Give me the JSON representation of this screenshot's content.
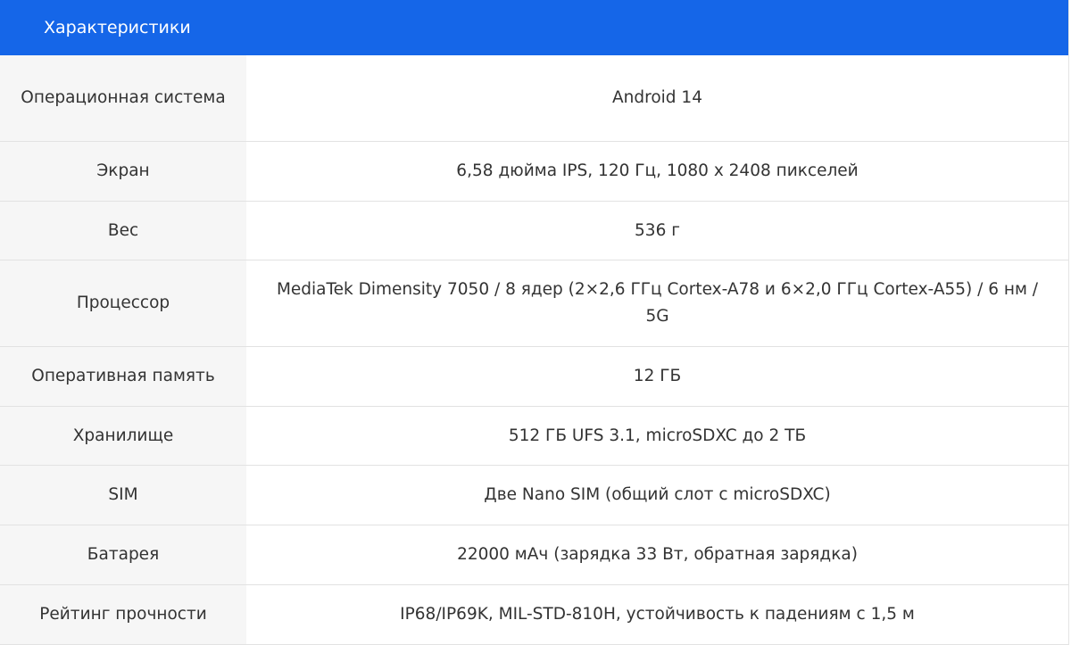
{
  "header": {
    "title": "Характеристики"
  },
  "rows": [
    {
      "label": "Операционная система",
      "value": "Android 14"
    },
    {
      "label": "Экран",
      "value": "6,58 дюйма IPS, 120 Гц, 1080 x 2408 пикселей"
    },
    {
      "label": "Вес",
      "value": "536 г"
    },
    {
      "label": "Процессор",
      "value": "MediaTek Dimensity 7050 / 8 ядер (2×2,6 ГГц Cortex-A78 и 6×2,0 ГГц Cortex-A55) / 6 нм / 5G"
    },
    {
      "label": "Оперативная память",
      "value": "12 ГБ"
    },
    {
      "label": "Хранилище",
      "value": "512 ГБ UFS 3.1, microSDXC до 2 ТБ"
    },
    {
      "label": "SIM",
      "value": "Две Nano SIM (общий слот с microSDXC)"
    },
    {
      "label": "Батарея",
      "value": "22000 мАч (зарядка 33 Вт, обратная зарядка)"
    },
    {
      "label": "Рейтинг прочности",
      "value": "IP68/IP69K, MIL-STD-810H, устойчивость к падениям с 1,5 м"
    }
  ],
  "colors": {
    "header": "#1566e8",
    "label_bg": "#f6f6f6"
  }
}
